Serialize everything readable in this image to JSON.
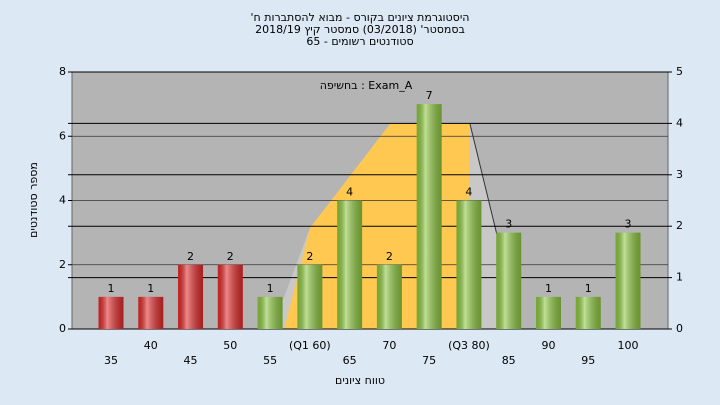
{
  "chart_data": {
    "type": "bar",
    "title": "היסטוגרמת ציונים בקורס - מבוא להסתברות ח'",
    "subtitle": "בסמסטר' (03/2018) סמסטר קיץ 2018/19",
    "subtitle2": "סטודנטים רשומים - 65",
    "annotation": "בחשיפה : Exam_A",
    "x_label": "טווח ציונים",
    "y_label": "מספר סטודנטים",
    "categories": [
      "35",
      "40",
      "45",
      "50",
      "55",
      "(Q1 60)",
      "65",
      "70",
      "75",
      "(Q3 80)",
      "85",
      "90",
      "95",
      "100"
    ],
    "values": [
      1,
      1,
      2,
      2,
      1,
      2,
      4,
      2,
      7,
      4,
      3,
      1,
      1,
      3
    ],
    "colors": [
      "#e02828",
      "#e02828",
      "#e02828",
      "#e02828",
      "#8cc63f",
      "#8cc63f",
      "#8cc63f",
      "#8cc63f",
      "#8cc63f",
      "#8cc63f",
      "#8cc63f",
      "#8cc63f",
      "#8cc63f",
      "#8cc63f"
    ],
    "ylim": [
      0,
      8
    ],
    "yticks": [
      0,
      2,
      4,
      6,
      8
    ],
    "y2lim": [
      0,
      5
    ],
    "y2ticks": [
      0,
      1,
      2,
      3,
      4,
      5
    ],
    "grid": true
  }
}
